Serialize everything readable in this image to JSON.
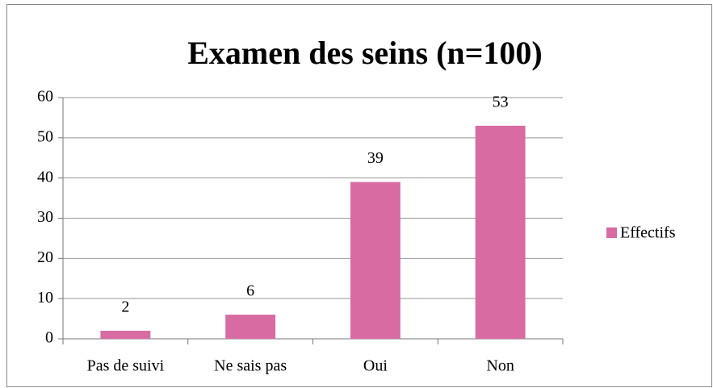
{
  "chart_data": {
    "type": "bar",
    "title": "Examen des seins (n=100)",
    "categories": [
      "Pas de suivi",
      "Ne sais pas",
      "Oui",
      "Non"
    ],
    "series": [
      {
        "name": "Effectifs",
        "color": "#d96ba3",
        "values": [
          2,
          6,
          39,
          53
        ]
      }
    ],
    "ylim": [
      0,
      60
    ],
    "yticks": [
      0,
      10,
      20,
      30,
      40,
      50,
      60
    ],
    "grid": true,
    "legend": "right",
    "data_labels": true
  }
}
